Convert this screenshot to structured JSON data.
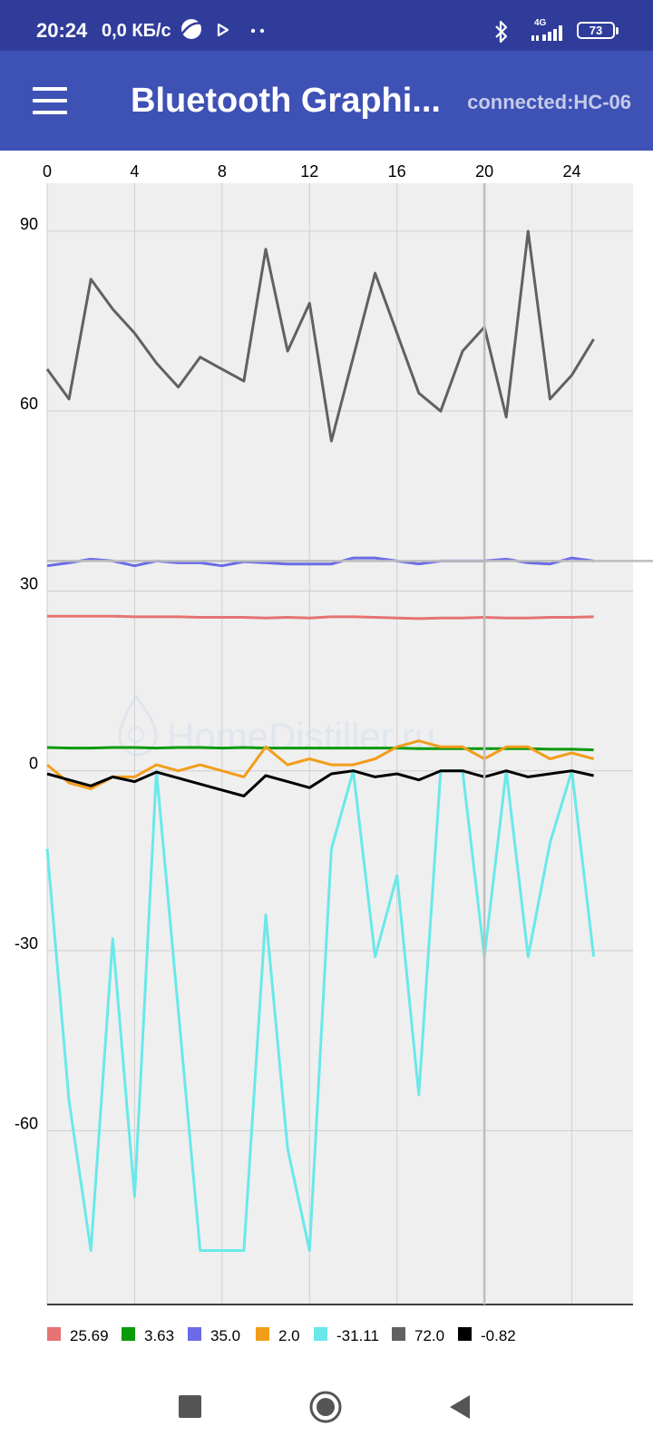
{
  "status_bar": {
    "time": "20:24",
    "speed": "0,0 КБ/с",
    "network": "4G",
    "battery": "73",
    "icons": [
      "browser-icon",
      "play-icon",
      "more-dots-icon",
      "bluetooth-icon",
      "signal-icon",
      "battery-icon"
    ]
  },
  "app_bar": {
    "title": "Bluetooth Graphi...",
    "status": "connected:HC-06"
  },
  "colors": {
    "status_bar": "#2f3c9a",
    "app_bar": "#3e51b5",
    "plot_background": "#efefef",
    "cursor_line": "#bdbdbd"
  },
  "watermark": "HomeDistiller.ru",
  "chart_data": {
    "type": "line",
    "xlim": [
      0,
      26.8
    ],
    "ylim": [
      -89,
      98
    ],
    "x_ticks": [
      0,
      4,
      8,
      12,
      16,
      20,
      24
    ],
    "x_tick_labels": [
      "0",
      "4",
      "8",
      "12",
      "16",
      "20",
      "24"
    ],
    "y_ticks": [
      90,
      60,
      30,
      0,
      -30,
      -60
    ],
    "y_tick_labels": [
      "90",
      "60",
      "30",
      "0",
      "-30",
      "-60"
    ],
    "x_axis_position": "top",
    "grid": true,
    "legend_position": "bottom-left",
    "cursor_x": 20,
    "cursor_y": 35.0,
    "x": [
      0,
      1,
      2,
      3,
      4,
      5,
      6,
      7,
      8,
      9,
      10,
      11,
      12,
      13,
      14,
      15,
      16,
      17,
      18,
      19,
      20,
      21,
      22,
      23,
      24,
      25
    ],
    "series": [
      {
        "name": "25.69",
        "color": "#e57373",
        "values": [
          25.8,
          25.8,
          25.8,
          25.8,
          25.7,
          25.7,
          25.7,
          25.6,
          25.6,
          25.6,
          25.5,
          25.6,
          25.5,
          25.7,
          25.7,
          25.6,
          25.5,
          25.4,
          25.5,
          25.5,
          25.6,
          25.5,
          25.5,
          25.6,
          25.6,
          25.7
        ]
      },
      {
        "name": "3.63",
        "color": "#0a9a0a",
        "values": [
          3.9,
          3.8,
          3.8,
          3.9,
          3.9,
          3.8,
          3.9,
          3.9,
          3.8,
          3.9,
          3.8,
          3.8,
          3.8,
          3.8,
          3.8,
          3.8,
          3.8,
          3.7,
          3.7,
          3.7,
          3.7,
          3.7,
          3.7,
          3.6,
          3.6,
          3.5
        ]
      },
      {
        "name": "35.0",
        "color": "#6b6be8",
        "values": [
          34.2,
          34.7,
          35.3,
          35.0,
          34.2,
          35.0,
          34.7,
          34.7,
          34.2,
          34.9,
          34.7,
          34.5,
          34.5,
          34.5,
          35.5,
          35.5,
          35.0,
          34.5,
          35.0,
          35.0,
          35.0,
          35.3,
          34.7,
          34.5,
          35.5,
          35.0
        ]
      },
      {
        "name": "2.0",
        "color": "#f29d1b",
        "values": [
          1,
          -2,
          -3,
          -1,
          -1,
          1,
          0,
          1,
          0,
          -1,
          4,
          1,
          2,
          1,
          1,
          2,
          4,
          5,
          4,
          4,
          2,
          4,
          4,
          2,
          3,
          2
        ]
      },
      {
        "name": "-31.11",
        "color": "#6ae8ea",
        "values": [
          -13,
          -55,
          -80,
          -28,
          -71,
          0,
          -40,
          -80,
          -80,
          -80,
          -24,
          -63,
          -80,
          -13,
          0,
          -31,
          -17.5,
          -54,
          0,
          0,
          -31,
          0,
          -31,
          -12,
          0,
          -31
        ]
      },
      {
        "name": "72.0",
        "color": "#616161",
        "values": [
          67,
          62,
          82,
          77,
          73,
          68,
          64,
          69,
          67,
          65,
          87,
          70,
          78,
          55,
          69,
          83,
          73,
          63,
          60,
          70,
          74,
          59,
          90,
          62,
          66,
          72
        ]
      },
      {
        "name": "-0.82",
        "color": "#000000",
        "values": [
          -0.5,
          -1.5,
          -2.5,
          -1,
          -1.8,
          -0.2,
          -1.2,
          -2.2,
          -3.2,
          -4.2,
          -0.8,
          -1.8,
          -2.8,
          -0.5,
          0,
          -1,
          -0.5,
          -1.5,
          0,
          0,
          -1,
          0,
          -1,
          -0.5,
          0,
          -0.8
        ]
      }
    ]
  }
}
